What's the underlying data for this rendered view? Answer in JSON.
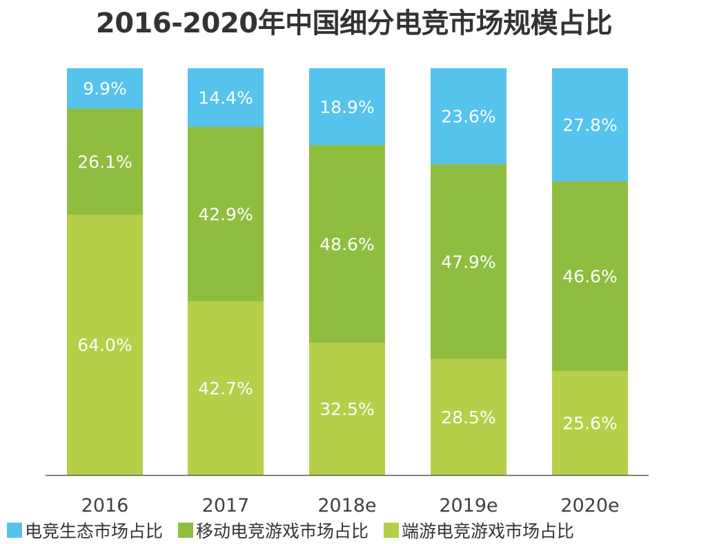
{
  "chart_data": {
    "type": "bar",
    "stacked": true,
    "title": "2016-2020年中国细分电竞市场规模占比",
    "categories": [
      "2016",
      "2017",
      "2018e",
      "2019e",
      "2020e"
    ],
    "series": [
      {
        "name": "端游电竞游戏市场占比",
        "color": "#b5cf49",
        "values": [
          64.0,
          42.7,
          32.5,
          28.5,
          25.6
        ]
      },
      {
        "name": "移动电竞游戏市场占比",
        "color": "#8fbd3f",
        "values": [
          26.1,
          42.9,
          48.6,
          47.9,
          46.6
        ]
      },
      {
        "name": "电竞生态市场占比",
        "color": "#55c3ec",
        "values": [
          9.9,
          14.4,
          18.9,
          23.6,
          27.8
        ]
      }
    ],
    "value_suffix": "%",
    "ylim": [
      0,
      100
    ],
    "grid": false,
    "legend_position": "bottom"
  }
}
